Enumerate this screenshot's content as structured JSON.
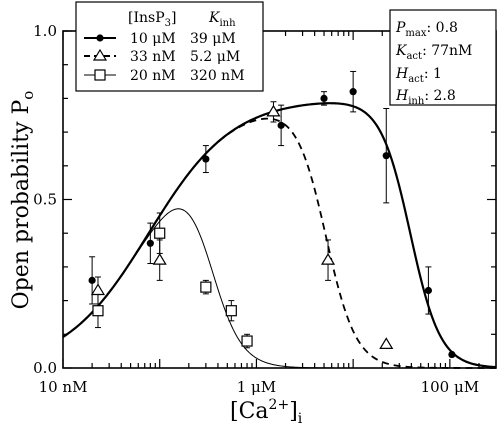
{
  "chart_data": {
    "type": "scatter",
    "ylabel": "Open probability P",
    "ylabel_sub": "o",
    "xlabel": "[Ca",
    "xlabel_sup": "2+",
    "xlabel_close": "]",
    "xlabel_sub": "i",
    "xscale": "log",
    "xlim": [
      1e-08,
      0.0003
    ],
    "ylim": [
      0,
      1.0
    ],
    "y_ticks": [
      {
        "value": 0.0,
        "label": "0.0"
      },
      {
        "value": 0.5,
        "label": "0.5"
      },
      {
        "value": 1.0,
        "label": "1.0"
      }
    ],
    "x_ticks": [
      {
        "value": 1e-08,
        "label": "10 nM"
      },
      {
        "value": 1e-06,
        "label": "1 μM"
      },
      {
        "value": 0.0001,
        "label": "100 μM"
      }
    ],
    "legend": {
      "header": {
        "col1": "[InsP",
        "col1_sub": "3",
        "col1_close": "]",
        "col2": "K",
        "col2_sub": "inh"
      },
      "rows": [
        {
          "conc": "10 μM",
          "kinh": "39 μM",
          "marker": "filled-circle",
          "line": "solid"
        },
        {
          "conc": "33 nM",
          "kinh": "5.2 μM",
          "marker": "open-triangle",
          "line": "dashed"
        },
        {
          "conc": "20 nM",
          "kinh": "320 nM",
          "marker": "open-square",
          "line": "thin"
        }
      ],
      "placement": "top-left"
    },
    "params": {
      "rows": [
        {
          "sym": "P",
          "sub": "max",
          "value": ": 0.8"
        },
        {
          "sym": "K",
          "sub": "act",
          "value": ": 77nM"
        },
        {
          "sym": "H",
          "sub": "act",
          "value": ": 1"
        },
        {
          "sym": "H",
          "sub": "inh",
          "value": ": 2.8"
        }
      ],
      "placement": "top-right"
    },
    "series": [
      {
        "marker": "filled-circle",
        "curve": {
          "pmax": 0.8,
          "kact": 7.7e-08,
          "hact": 1,
          "kinh": 3.9e-05,
          "hinh": 2.8
        },
        "points": [
          {
            "x": 2e-08,
            "y": 0.26,
            "err": 0.07
          },
          {
            "x": 8e-08,
            "y": 0.37,
            "err": 0.06
          },
          {
            "x": 3e-07,
            "y": 0.62,
            "err": 0.04
          },
          {
            "x": 1.8e-06,
            "y": 0.72,
            "err": 0.06
          },
          {
            "x": 5e-06,
            "y": 0.8,
            "err": 0.02
          },
          {
            "x": 1e-05,
            "y": 0.82,
            "err": 0.06
          },
          {
            "x": 2.2e-05,
            "y": 0.63,
            "err": 0.14
          },
          {
            "x": 6e-05,
            "y": 0.23,
            "err": 0.07
          },
          {
            "x": 0.000105,
            "y": 0.04,
            "err": 0
          }
        ]
      },
      {
        "marker": "open-triangle",
        "curve": {
          "pmax": 0.8,
          "kact": 7.7e-08,
          "hact": 1,
          "kinh": 5.2e-06,
          "hinh": 2.8
        },
        "points": [
          {
            "x": 2.3e-08,
            "y": 0.23,
            "err": 0.04
          },
          {
            "x": 1e-07,
            "y": 0.32,
            "err": 0.06
          },
          {
            "x": 1.5e-06,
            "y": 0.76,
            "err": 0.03
          },
          {
            "x": 5.5e-06,
            "y": 0.32,
            "err": 0.06
          },
          {
            "x": 2.2e-05,
            "y": 0.07,
            "err": 0
          }
        ]
      },
      {
        "marker": "open-square",
        "curve": {
          "pmax": 0.8,
          "kact": 7.7e-08,
          "hact": 1,
          "kinh": 3.2e-07,
          "hinh": 2.8
        },
        "points": [
          {
            "x": 2.3e-08,
            "y": 0.17,
            "err": 0.05
          },
          {
            "x": 1e-07,
            "y": 0.4,
            "err": 0.06
          },
          {
            "x": 3e-07,
            "y": 0.24,
            "err": 0.02
          },
          {
            "x": 5.5e-07,
            "y": 0.17,
            "err": 0.03
          },
          {
            "x": 8e-07,
            "y": 0.08,
            "err": 0.02
          }
        ]
      }
    ]
  }
}
